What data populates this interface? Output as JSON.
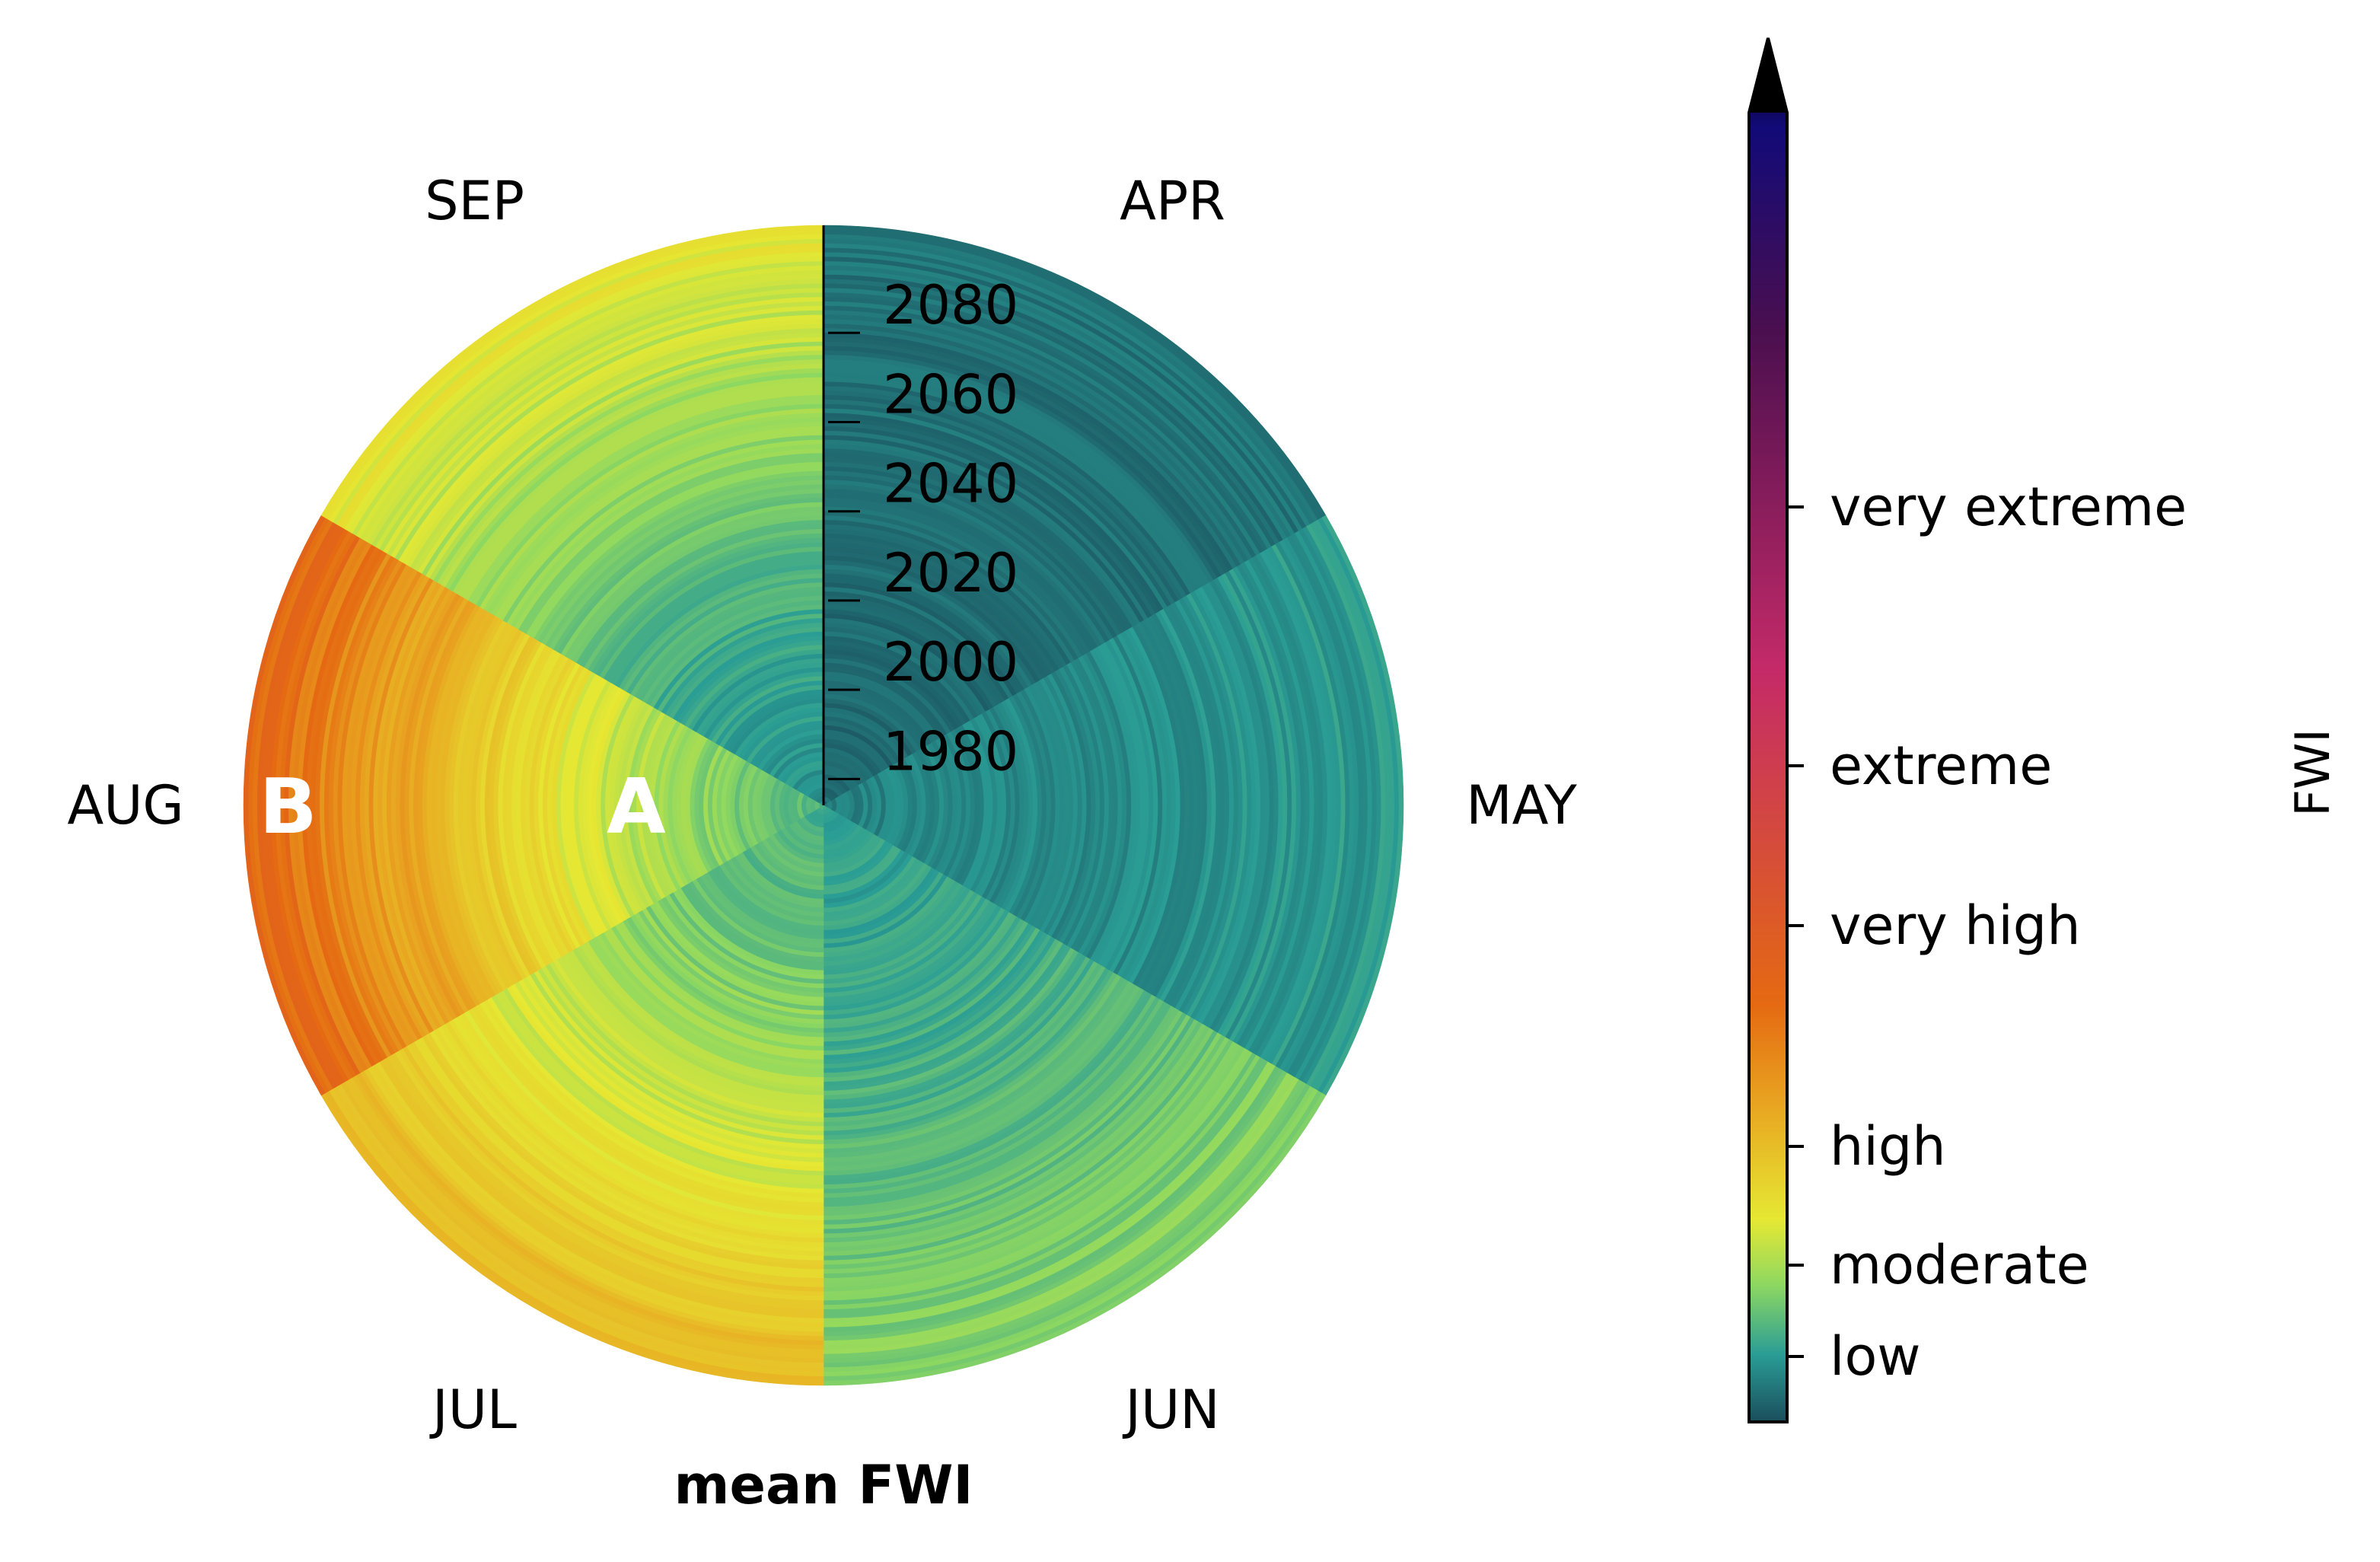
{
  "chart_data": {
    "type": "heatmap",
    "subtype": "polar-radial-heatmap",
    "title": "mean FWI",
    "angular_categories": [
      "APR",
      "MAY",
      "JUN",
      "JUL",
      "AUG",
      "SEP"
    ],
    "radial_axis": {
      "tick_labels": [
        "1980",
        "2000",
        "2020",
        "2040",
        "2060",
        "2080"
      ],
      "range": [
        1971,
        2100
      ]
    },
    "values_by_month": [
      {
        "month": "APR",
        "start": 4.5,
        "end": 5.0
      },
      {
        "month": "MAY",
        "start": 5.5,
        "end": 6.5
      },
      {
        "month": "JUN",
        "start": 6.5,
        "end": 9.5
      },
      {
        "month": "JUL",
        "start": 7.5,
        "end": 16.5
      },
      {
        "month": "AUG",
        "start": 8.0,
        "end": 23.0
      },
      {
        "month": "SEP",
        "start": 6.0,
        "end": 13.0
      }
    ],
    "annotations": [
      {
        "text": "A",
        "month": "AUG",
        "year": 2012
      },
      {
        "text": "B",
        "month": "AUG",
        "year": 2090
      }
    ],
    "colorbar": {
      "label": "FWI",
      "range": [
        3.5,
        65
      ],
      "extend": "max",
      "ticks": [
        {
          "label": "low",
          "value": 5.2
        },
        {
          "label": "moderate",
          "value": 11.2
        },
        {
          "label": "high",
          "value": 21.3
        },
        {
          "label": "very high",
          "value": 38
        },
        {
          "label": "extreme",
          "value": 50
        },
        {
          "label": "very extreme",
          "value": 70
        }
      ]
    },
    "colors": {
      "cmap_stops": [
        "#1a4e5c",
        "#2a9d95",
        "#8ed861",
        "#e6e833",
        "#e8a621",
        "#e56a12",
        "#c42a68",
        "#4a0f4f",
        "#120a78",
        "#000000"
      ]
    }
  }
}
